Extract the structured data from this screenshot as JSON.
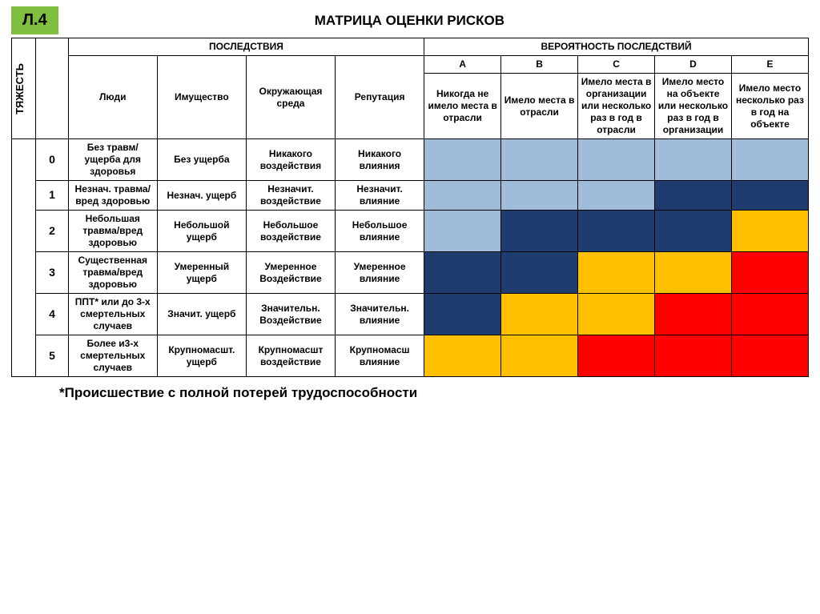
{
  "badge": "Л.4",
  "title": "МАТРИЦА ОЦЕНКИ РИСКОВ",
  "sideLabel": "ТЯЖЕСТЬ",
  "groupHeaders": {
    "consequences": "ПОСЛЕДСТВИЯ",
    "probability": "ВЕРОЯТНОСТЬ ПОСЛЕДСТВИЙ"
  },
  "consequenceHeaders": [
    "Люди",
    "Имущество",
    "Окружающая среда",
    "Репутация"
  ],
  "probLetters": [
    "A",
    "B",
    "C",
    "D",
    "E"
  ],
  "probDescriptions": [
    "Никогда не имело места в отрасли",
    "Имело места в отрасли",
    "Имело места в организации или несколько раз в год в отрасли",
    "Имело место на объекте или несколько раз в год в организации",
    "Имело место несколько раз в год на объекте"
  ],
  "rows": [
    {
      "num": "0",
      "conseq": [
        "Без травм/ ущерба для здоровья",
        "Без ущерба",
        "Никакого воздействия",
        "Никакого влияния"
      ],
      "colors": [
        "light",
        "light",
        "light",
        "light",
        "light"
      ]
    },
    {
      "num": "1",
      "conseq": [
        "Незнач. травма/вред здоровью",
        "Незнач. ущерб",
        "Незначит. воздействие",
        "Незначит. влияние"
      ],
      "colors": [
        "light",
        "light",
        "light",
        "dark",
        "dark"
      ]
    },
    {
      "num": "2",
      "conseq": [
        "Небольшая травма/вред здоровью",
        "Небольшой ущерб",
        "Небольшое воздействие",
        "Небольшое влияние"
      ],
      "colors": [
        "light",
        "dark",
        "dark",
        "dark",
        "yellow"
      ]
    },
    {
      "num": "3",
      "conseq": [
        "Существенная травма/вред здоровью",
        "Умеренный ущерб",
        "Умеренное Воздействие",
        "Умеренное влияние"
      ],
      "colors": [
        "dark",
        "dark",
        "yellow",
        "yellow",
        "red"
      ]
    },
    {
      "num": "4",
      "conseq": [
        "ППТ* или до 3-х смертельных случаев",
        "Значит. ущерб",
        "Значительн. Воздействие",
        "Значительн. влияние"
      ],
      "colors": [
        "dark",
        "yellow",
        "yellow",
        "red",
        "red"
      ]
    },
    {
      "num": "5",
      "conseq": [
        "Более и3-х смертельных случаев",
        "Крупномасшт. ущерб",
        "Крупномасшт воздействие",
        "Крупномасш влияние"
      ],
      "colors": [
        "yellow",
        "yellow",
        "red",
        "red",
        "red"
      ]
    }
  ],
  "colors": {
    "light": "#9fbcda",
    "dark": "#1f3c6e",
    "yellow": "#ffc000",
    "red": "#ff0000",
    "badge_bg": "#7fbf3f"
  },
  "footnote": "*Происшествие с полной потерей трудоспособности"
}
